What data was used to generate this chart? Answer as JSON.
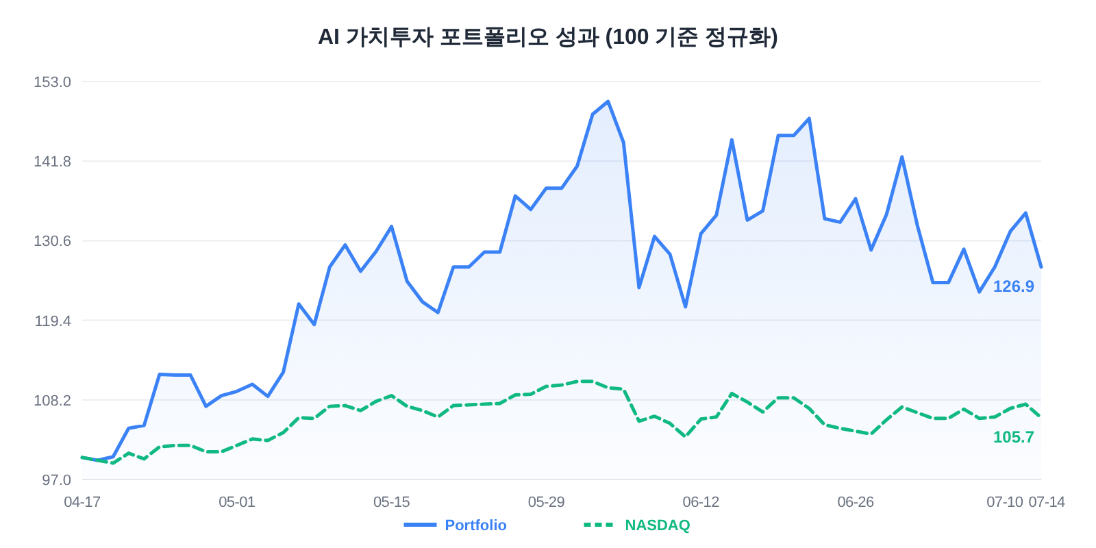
{
  "chart_data": {
    "type": "line",
    "title": "AI 가치투자 포트폴리오 성과 (100 기준 정규화)",
    "categories": [
      "04-17",
      null,
      null,
      null,
      null,
      null,
      null,
      null,
      null,
      null,
      "05-01",
      null,
      null,
      null,
      null,
      null,
      null,
      null,
      null,
      null,
      "05-15",
      null,
      null,
      null,
      null,
      null,
      null,
      null,
      null,
      null,
      "05-29",
      null,
      null,
      null,
      null,
      null,
      null,
      null,
      null,
      null,
      "06-12",
      null,
      null,
      null,
      null,
      null,
      null,
      null,
      null,
      null,
      "06-26",
      null,
      null,
      null,
      null,
      null,
      null,
      null,
      null,
      null,
      "07-10",
      null,
      "07-14"
    ],
    "series": [
      {
        "name": "Portfolio",
        "type": "area",
        "color": "#3b82f6",
        "line_style": "solid",
        "values": [
          100.1,
          99.7,
          100.2,
          104.2,
          104.6,
          111.8,
          111.7,
          111.7,
          107.3,
          108.8,
          109.4,
          110.4,
          108.7,
          112.1,
          121.7,
          118.8,
          126.9,
          130.0,
          126.3,
          129.1,
          132.6,
          124.9,
          122.0,
          120.5,
          126.9,
          126.9,
          129.0,
          129.0,
          136.9,
          135.0,
          138.0,
          138.0,
          141.1,
          148.4,
          150.2,
          144.4,
          124.0,
          131.2,
          128.7,
          121.3,
          131.6,
          134.2,
          144.8,
          133.5,
          134.8,
          145.4,
          145.4,
          147.8,
          133.7,
          133.2,
          136.5,
          129.3,
          134.3,
          142.4,
          132.7,
          124.7,
          124.7,
          129.4,
          123.4,
          126.9,
          131.9,
          134.5,
          126.9
        ],
        "value_labels": [
          null,
          null,
          null,
          null,
          null,
          null,
          null,
          null,
          null,
          null,
          null,
          null,
          null,
          null,
          null,
          null,
          null,
          null,
          null,
          null,
          null,
          null,
          null,
          null,
          null,
          null,
          null,
          null,
          null,
          null,
          null,
          null,
          null,
          null,
          null,
          null,
          null,
          null,
          null,
          null,
          null,
          null,
          null,
          null,
          null,
          null,
          null,
          null,
          null,
          null,
          null,
          null,
          null,
          null,
          null,
          null,
          null,
          null,
          null,
          null,
          null,
          null,
          "126.9"
        ]
      },
      {
        "name": "NASDAQ",
        "color": "#10b981",
        "line_style": "dashed",
        "values": [
          100.1,
          99.7,
          99.3,
          100.7,
          99.9,
          101.6,
          101.8,
          101.8,
          100.9,
          100.9,
          101.8,
          102.7,
          102.5,
          103.6,
          105.7,
          105.6,
          107.3,
          107.4,
          106.7,
          108.0,
          108.8,
          107.3,
          106.7,
          105.8,
          107.4,
          107.5,
          107.6,
          107.7,
          108.9,
          109.0,
          110.1,
          110.3,
          110.8,
          110.8,
          109.9,
          109.7,
          105.2,
          105.9,
          104.9,
          103.0,
          105.5,
          105.8,
          109.1,
          107.9,
          106.5,
          108.5,
          108.5,
          107.0,
          104.7,
          104.2,
          103.8,
          103.4,
          105.4,
          107.2,
          106.4,
          105.6,
          105.6,
          106.9,
          105.6,
          105.8,
          107.0,
          107.6,
          105.7
        ],
        "value_labels": [
          null,
          null,
          null,
          null,
          null,
          null,
          null,
          null,
          null,
          null,
          null,
          null,
          null,
          null,
          null,
          null,
          null,
          null,
          null,
          null,
          null,
          null,
          null,
          null,
          null,
          null,
          null,
          null,
          null,
          null,
          null,
          null,
          null,
          null,
          null,
          null,
          null,
          null,
          null,
          null,
          null,
          null,
          null,
          null,
          null,
          null,
          null,
          null,
          null,
          null,
          null,
          null,
          null,
          null,
          null,
          null,
          null,
          null,
          null,
          null,
          null,
          null,
          "105.7"
        ]
      }
    ],
    "ylim": [
      97.0,
      153.0
    ],
    "yticks": [
      {
        "value": 97.0,
        "label": "97.0"
      },
      {
        "value": 108.2,
        "label": "108.2"
      },
      {
        "value": 119.4,
        "label": "119.4"
      },
      {
        "value": 130.6,
        "label": "130.6"
      },
      {
        "value": 141.8,
        "label": "141.8"
      },
      {
        "value": 153.0,
        "label": "153.0"
      }
    ],
    "grid": "y",
    "legend": "bottom",
    "marker": "none"
  }
}
